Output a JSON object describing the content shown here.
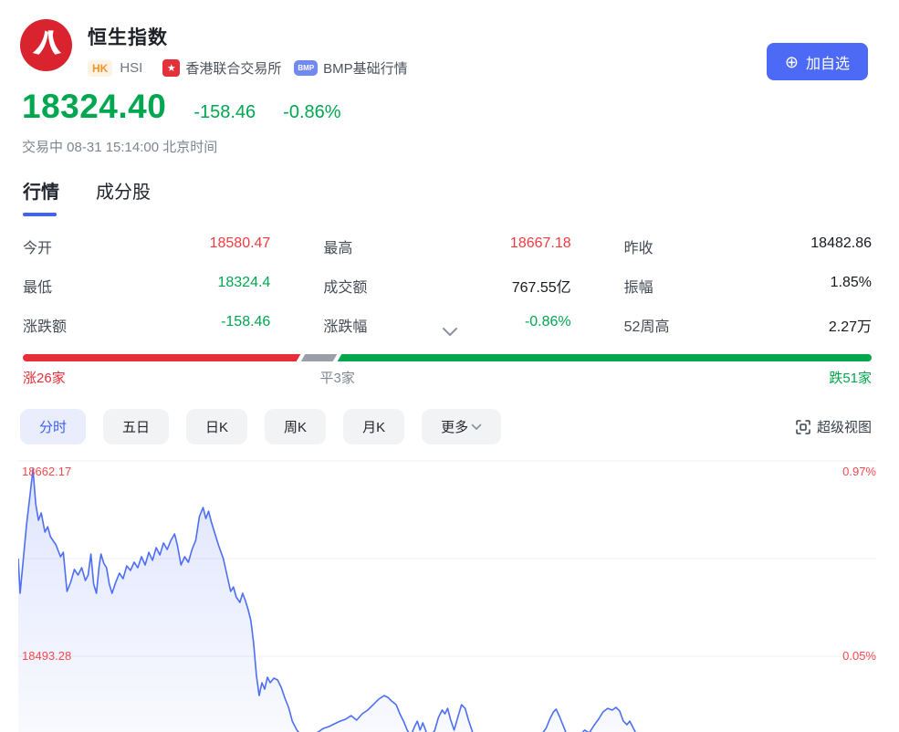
{
  "header": {
    "title": "恒生指数",
    "market_badge": "HK",
    "symbol": "HSI",
    "exchange_label": "香港联合交易所",
    "feed_badge_text": "BMP",
    "feed_label": "BMP基础行情",
    "add_watchlist_label": "加自选"
  },
  "quote": {
    "price": "18324.40",
    "change": "-158.46",
    "change_pct": "-0.86%",
    "status": "交易中 08-31 15:14:00 北京时间"
  },
  "tabs": [
    {
      "label": "行情",
      "active": true
    },
    {
      "label": "成分股",
      "active": false
    }
  ],
  "stats": [
    {
      "label": "今开",
      "value": "18580.47",
      "trend": "up"
    },
    {
      "label": "最高",
      "value": "18667.18",
      "trend": "up"
    },
    {
      "label": "昨收",
      "value": "18482.86",
      "trend": "flat"
    },
    {
      "label": "最低",
      "value": "18324.4",
      "trend": "down"
    },
    {
      "label": "成交额",
      "value": "767.55亿",
      "trend": "flat"
    },
    {
      "label": "振幅",
      "value": "1.85%",
      "trend": "flat"
    },
    {
      "label": "涨跌额",
      "value": "-158.46",
      "trend": "down"
    },
    {
      "label": "涨跌幅",
      "value": "-0.86%",
      "trend": "down"
    },
    {
      "label": "52周高",
      "value": "2.27万",
      "trend": "flat"
    }
  ],
  "market_breadth": {
    "up_count": 26,
    "flat_count": 3,
    "down_count": 51,
    "up_label": "涨26家",
    "flat_label": "平3家",
    "down_label": "跌51家"
  },
  "period_tabs": [
    {
      "label": "分时",
      "active": true,
      "has_dropdown": false
    },
    {
      "label": "五日",
      "active": false,
      "has_dropdown": false
    },
    {
      "label": "日K",
      "active": false,
      "has_dropdown": false
    },
    {
      "label": "周K",
      "active": false,
      "has_dropdown": false
    },
    {
      "label": "月K",
      "active": false,
      "has_dropdown": false
    },
    {
      "label": "更多",
      "active": false,
      "has_dropdown": true
    }
  ],
  "super_view_label": "超级视图",
  "colors": {
    "up_red": "#f23b40",
    "down_green": "#00a750",
    "accent_blue": "#4c6af5",
    "line_blue": "#4e6ff2",
    "breadth_red": "#e62e38",
    "breadth_gray": "#9aa0a8",
    "breadth_green": "#00a74c"
  },
  "chart_data": {
    "type": "line",
    "prev_close": 18482.86,
    "gridlines": [
      {
        "price": 18662.17,
        "price_label": "18662.17",
        "pct_label": "0.97%"
      },
      {
        "price": 18577.73,
        "price_label": "",
        "pct_label": ""
      },
      {
        "price": 18493.28,
        "price_label": "18493.28",
        "pct_label": "0.05%"
      }
    ],
    "day_high": 18667.18,
    "day_low": 18324.4,
    "points": [
      [
        0,
        18577.7
      ],
      [
        2,
        18547.7
      ],
      [
        5,
        18572.9
      ],
      [
        9,
        18606.9
      ],
      [
        13,
        18634.0
      ],
      [
        16,
        18655.0
      ],
      [
        19,
        18625.0
      ],
      [
        22,
        18610.9
      ],
      [
        25,
        18617.2
      ],
      [
        29,
        18600.6
      ],
      [
        32,
        18605.3
      ],
      [
        35,
        18596.7
      ],
      [
        41,
        18589.6
      ],
      [
        46,
        18579.3
      ],
      [
        49,
        18583.2
      ],
      [
        53,
        18549.3
      ],
      [
        57,
        18557.2
      ],
      [
        61,
        18568.3
      ],
      [
        65,
        18563.5
      ],
      [
        69,
        18569.8
      ],
      [
        73,
        18558.8
      ],
      [
        76,
        18563.5
      ],
      [
        79,
        18581.7
      ],
      [
        82,
        18555.6
      ],
      [
        85,
        18547.7
      ],
      [
        88,
        18571.4
      ],
      [
        90,
        18581.7
      ],
      [
        93,
        18573.8
      ],
      [
        96,
        18569.8
      ],
      [
        99,
        18555.6
      ],
      [
        102,
        18547.7
      ],
      [
        106,
        18557.2
      ],
      [
        110,
        18565.1
      ],
      [
        114,
        18560.4
      ],
      [
        118,
        18571.4
      ],
      [
        122,
        18567.5
      ],
      [
        126,
        18574.6
      ],
      [
        130,
        18569.8
      ],
      [
        134,
        18579.3
      ],
      [
        138,
        18572.2
      ],
      [
        142,
        18583.2
      ],
      [
        146,
        18576.2
      ],
      [
        150,
        18587.2
      ],
      [
        154,
        18580.9
      ],
      [
        158,
        18591.2
      ],
      [
        162,
        18585.6
      ],
      [
        166,
        18593.5
      ],
      [
        170,
        18599.0
      ],
      [
        173,
        18589.6
      ],
      [
        177,
        18572.2
      ],
      [
        181,
        18579.3
      ],
      [
        185,
        18574.6
      ],
      [
        189,
        18585.6
      ],
      [
        193,
        18593.5
      ],
      [
        197,
        18614.0
      ],
      [
        201,
        18621.9
      ],
      [
        204,
        18612.4
      ],
      [
        207,
        18618.7
      ],
      [
        210,
        18609.3
      ],
      [
        214,
        18599.0
      ],
      [
        218,
        18588.8
      ],
      [
        223,
        18577.7
      ],
      [
        227,
        18563.5
      ],
      [
        231,
        18549.3
      ],
      [
        234,
        18553.2
      ],
      [
        237,
        18544.6
      ],
      [
        241,
        18539.8
      ],
      [
        244,
        18547.7
      ],
      [
        247,
        18541.4
      ],
      [
        250,
        18533.5
      ],
      [
        253,
        18524.0
      ],
      [
        256,
        18504.3
      ],
      [
        259,
        18476.7
      ],
      [
        262,
        18459.3
      ],
      [
        265,
        18470.4
      ],
      [
        268,
        18464.8
      ],
      [
        271,
        18475.1
      ],
      [
        274,
        18470.4
      ],
      [
        278,
        18474.3
      ],
      [
        282,
        18472.8
      ],
      [
        286,
        18466.4
      ],
      [
        290,
        18457.0
      ],
      [
        294,
        18449.1
      ],
      [
        298,
        18437.2
      ],
      [
        303,
        18429.4
      ],
      [
        308,
        18424.6
      ],
      [
        314,
        18421.5
      ],
      [
        320,
        18424.6
      ],
      [
        326,
        18427.8
      ],
      [
        332,
        18430.9
      ],
      [
        338,
        18432.5
      ],
      [
        344,
        18434.9
      ],
      [
        350,
        18437.2
      ],
      [
        356,
        18438.8
      ],
      [
        362,
        18441.9
      ],
      [
        368,
        18438.0
      ],
      [
        374,
        18443.5
      ],
      [
        380,
        18446.7
      ],
      [
        386,
        18451.4
      ],
      [
        392,
        18456.2
      ],
      [
        398,
        18459.3
      ],
      [
        402,
        18457.7
      ],
      [
        406,
        18454.6
      ],
      [
        411,
        18451.4
      ],
      [
        415,
        18443.5
      ],
      [
        419,
        18437.2
      ],
      [
        423,
        18429.4
      ],
      [
        427,
        18424.6
      ],
      [
        431,
        18432.5
      ],
      [
        434,
        18437.2
      ],
      [
        437,
        18429.4
      ],
      [
        440,
        18435.7
      ],
      [
        444,
        18427.0
      ],
      [
        448,
        18423.1
      ],
      [
        453,
        18429.4
      ],
      [
        457,
        18440.4
      ],
      [
        461,
        18446.7
      ],
      [
        464,
        18443.5
      ],
      [
        467,
        18448.2
      ],
      [
        470,
        18438.8
      ],
      [
        474,
        18429.4
      ],
      [
        478,
        18440.4
      ],
      [
        482,
        18451.4
      ],
      [
        486,
        18448.2
      ],
      [
        490,
        18437.2
      ],
      [
        494,
        18427.8
      ],
      [
        499,
        18421.5
      ],
      [
        508,
        18419.9
      ],
      [
        518,
        18422.3
      ],
      [
        528,
        18419.9
      ],
      [
        538,
        18423.1
      ],
      [
        548,
        18419.9
      ],
      [
        558,
        18422.3
      ],
      [
        568,
        18424.6
      ],
      [
        574,
        18430.9
      ],
      [
        578,
        18438.8
      ],
      [
        582,
        18445.1
      ],
      [
        585,
        18447.5
      ],
      [
        589,
        18440.4
      ],
      [
        593,
        18432.5
      ],
      [
        597,
        18424.6
      ],
      [
        603,
        18421.5
      ],
      [
        610,
        18424.6
      ],
      [
        616,
        18429.4
      ],
      [
        621,
        18427.0
      ],
      [
        626,
        18433.3
      ],
      [
        631,
        18438.8
      ],
      [
        636,
        18445.1
      ],
      [
        641,
        18448.2
      ],
      [
        646,
        18446.7
      ],
      [
        650,
        18449.1
      ],
      [
        654,
        18446.0
      ],
      [
        658,
        18437.2
      ],
      [
        662,
        18434.1
      ],
      [
        665,
        18437.2
      ],
      [
        669,
        18430.9
      ],
      [
        673,
        18424.6
      ],
      [
        677,
        18421.5
      ]
    ]
  }
}
